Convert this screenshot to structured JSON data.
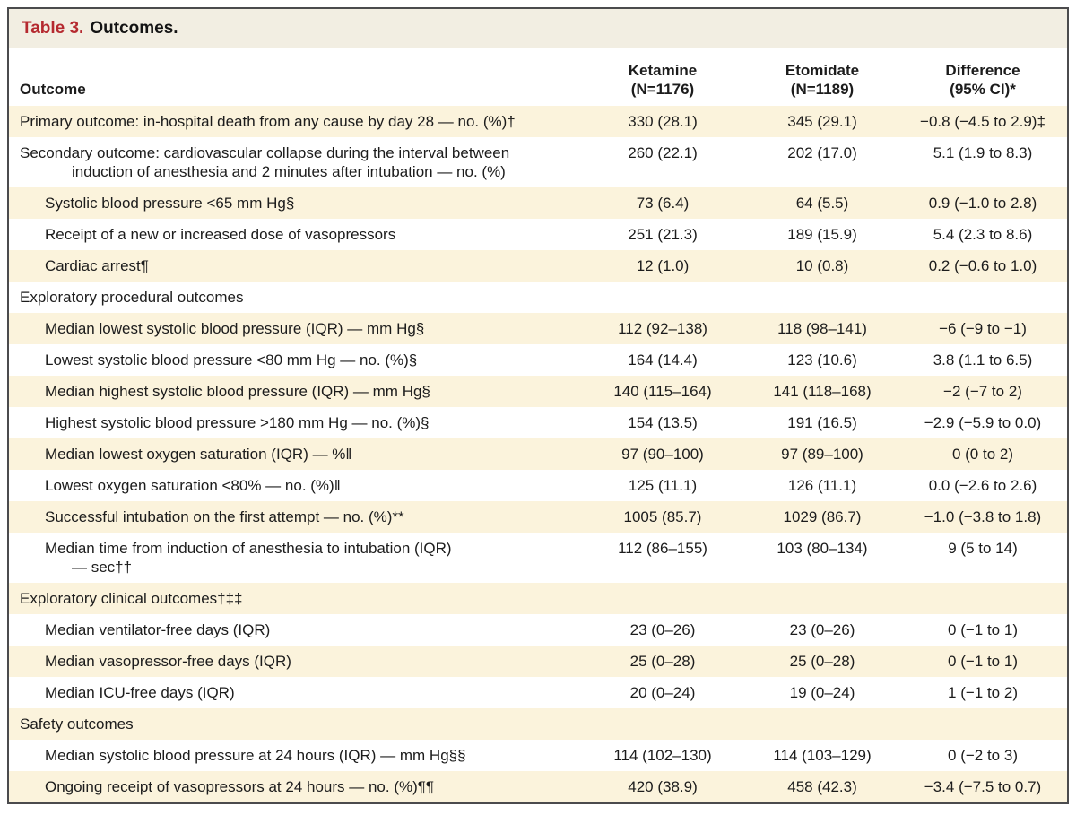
{
  "title": {
    "label": "Table 3.",
    "text": "Outcomes."
  },
  "colors": {
    "accent_red": "#b5292f",
    "row_stripe": "#fbf3dc",
    "title_band": "#f2eee2",
    "frame_border": "#4b4b4d"
  },
  "header": {
    "outcome": "Outcome",
    "col1_line1": "Ketamine",
    "col1_line2": "(N=1176)",
    "col2_line1": "Etomidate",
    "col2_line2": "(N=1189)",
    "col3_line1": "Difference",
    "col3_line2": "(95% CI)*"
  },
  "rows": [
    {
      "indent": 0,
      "shaded": true,
      "section": false,
      "label": "Primary outcome: in-hospital death from any cause by day 28 — no. (%)†",
      "ketamine": "330 (28.1)",
      "etomidate": "345 (29.1)",
      "difference": "−0.8 (−4.5 to 2.9)‡"
    },
    {
      "indent": 0,
      "shaded": false,
      "section": false,
      "label": "Secondary outcome: cardiovascular collapse during the interval between",
      "label2": "induction of anesthesia and 2 minutes after intubation — no. (%)",
      "ketamine": "260 (22.1)",
      "etomidate": "202 (17.0)",
      "difference": "5.1 (1.9 to 8.3)"
    },
    {
      "indent": 1,
      "shaded": true,
      "section": false,
      "label": "Systolic blood pressure <65 mm Hg§",
      "ketamine": "73 (6.4)",
      "etomidate": "64 (5.5)",
      "difference": "0.9 (−1.0 to 2.8)"
    },
    {
      "indent": 1,
      "shaded": false,
      "section": false,
      "label": "Receipt of a new or increased dose of vasopressors",
      "ketamine": "251 (21.3)",
      "etomidate": "189 (15.9)",
      "difference": "5.4 (2.3 to 8.6)"
    },
    {
      "indent": 1,
      "shaded": true,
      "section": false,
      "label": "Cardiac arrest¶",
      "ketamine": "12 (1.0)",
      "etomidate": "10 (0.8)",
      "difference": "0.2 (−0.6 to 1.0)"
    },
    {
      "indent": 0,
      "shaded": false,
      "section": true,
      "label": "Exploratory procedural outcomes",
      "ketamine": "",
      "etomidate": "",
      "difference": ""
    },
    {
      "indent": 1,
      "shaded": true,
      "section": false,
      "label": "Median lowest systolic blood pressure (IQR) — mm Hg§",
      "ketamine": "112 (92–138)",
      "etomidate": "118 (98–141)",
      "difference": "−6 (−9 to −1)"
    },
    {
      "indent": 1,
      "shaded": false,
      "section": false,
      "label": "Lowest systolic blood pressure <80 mm Hg — no. (%)§",
      "ketamine": "164 (14.4)",
      "etomidate": "123 (10.6)",
      "difference": "3.8 (1.1 to 6.5)"
    },
    {
      "indent": 1,
      "shaded": true,
      "section": false,
      "label": "Median highest systolic blood pressure (IQR) — mm Hg§",
      "ketamine": "140 (115–164)",
      "etomidate": "141 (118–168)",
      "difference": "−2 (−7 to 2)"
    },
    {
      "indent": 1,
      "shaded": false,
      "section": false,
      "label": "Highest systolic blood pressure >180 mm Hg — no. (%)§",
      "ketamine": "154 (13.5)",
      "etomidate": "191 (16.5)",
      "difference": "−2.9 (−5.9 to 0.0)"
    },
    {
      "indent": 1,
      "shaded": true,
      "section": false,
      "label": "Median lowest oxygen saturation (IQR) — %‖",
      "ketamine": "97 (90–100)",
      "etomidate": "97 (89–100)",
      "difference": "0 (0 to 2)"
    },
    {
      "indent": 1,
      "shaded": false,
      "section": false,
      "label": "Lowest oxygen saturation <80% — no. (%)‖",
      "ketamine": "125 (11.1)",
      "etomidate": "126 (11.1)",
      "difference": "0.0 (−2.6 to 2.6)"
    },
    {
      "indent": 1,
      "shaded": true,
      "section": false,
      "label": "Successful intubation on the first attempt — no. (%)**",
      "ketamine": "1005 (85.7)",
      "etomidate": "1029 (86.7)",
      "difference": "−1.0 (−3.8 to 1.8)"
    },
    {
      "indent": 1,
      "shaded": false,
      "section": false,
      "label": "Median time from induction of anesthesia to intubation (IQR)",
      "label2": "— sec††",
      "ketamine": "112 (86–155)",
      "etomidate": "103 (80–134)",
      "difference": "9 (5 to 14)"
    },
    {
      "indent": 0,
      "shaded": true,
      "section": true,
      "label": "Exploratory clinical outcomes†‡‡",
      "ketamine": "",
      "etomidate": "",
      "difference": ""
    },
    {
      "indent": 1,
      "shaded": false,
      "section": false,
      "label": "Median ventilator-free days (IQR)",
      "ketamine": "23 (0–26)",
      "etomidate": "23 (0–26)",
      "difference": "0 (−1 to 1)"
    },
    {
      "indent": 1,
      "shaded": true,
      "section": false,
      "label": "Median vasopressor-free days (IQR)",
      "ketamine": "25 (0–28)",
      "etomidate": "25 (0–28)",
      "difference": "0 (−1 to 1)"
    },
    {
      "indent": 1,
      "shaded": false,
      "section": false,
      "label": "Median ICU-free days (IQR)",
      "ketamine": "20 (0–24)",
      "etomidate": "19 (0–24)",
      "difference": "1 (−1 to 2)"
    },
    {
      "indent": 0,
      "shaded": true,
      "section": true,
      "label": "Safety outcomes",
      "ketamine": "",
      "etomidate": "",
      "difference": ""
    },
    {
      "indent": 1,
      "shaded": false,
      "section": false,
      "label": "Median systolic blood pressure at 24 hours (IQR) — mm Hg§§",
      "ketamine": "114 (102–130)",
      "etomidate": "114 (103–129)",
      "difference": "0 (−2 to 3)"
    },
    {
      "indent": 1,
      "shaded": true,
      "section": false,
      "label": "Ongoing receipt of vasopressors at 24 hours — no. (%)¶¶",
      "ketamine": "420 (38.9)",
      "etomidate": "458 (42.3)",
      "difference": "−3.4 (−7.5 to 0.7)"
    }
  ]
}
